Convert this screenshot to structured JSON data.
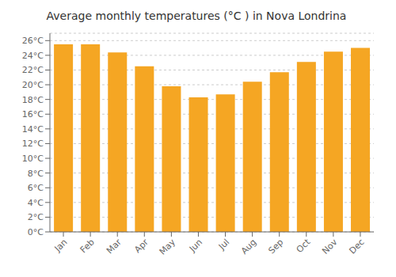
{
  "chart_data": {
    "type": "bar",
    "title": "Average monthly temperatures (°C ) in Nova Londrina",
    "categories": [
      "Jan",
      "Feb",
      "Mar",
      "Apr",
      "May",
      "Jun",
      "Jul",
      "Aug",
      "Sep",
      "Oct",
      "Nov",
      "Dec"
    ],
    "values": [
      25.5,
      25.5,
      24.4,
      22.5,
      19.8,
      18.3,
      18.7,
      20.4,
      21.7,
      23.1,
      24.5,
      25.0
    ],
    "color": "#F5A623",
    "ylim": [
      0,
      27
    ],
    "yticks": [
      {
        "value": 0,
        "label": "0°C"
      },
      {
        "value": 2,
        "label": "2°C"
      },
      {
        "value": 4,
        "label": "4°C"
      },
      {
        "value": 6,
        "label": "6°C"
      },
      {
        "value": 8,
        "label": "8°C"
      },
      {
        "value": 10,
        "label": "10°C"
      },
      {
        "value": 12,
        "label": "12°C"
      },
      {
        "value": 14,
        "label": "14°C"
      },
      {
        "value": 16,
        "label": "16°C"
      },
      {
        "value": 18,
        "label": "18°C"
      },
      {
        "value": 20,
        "label": "20°C"
      },
      {
        "value": 22,
        "label": "22°C"
      },
      {
        "value": 24,
        "label": "24°C"
      },
      {
        "value": 26,
        "label": "26°C"
      }
    ],
    "grid": true
  }
}
